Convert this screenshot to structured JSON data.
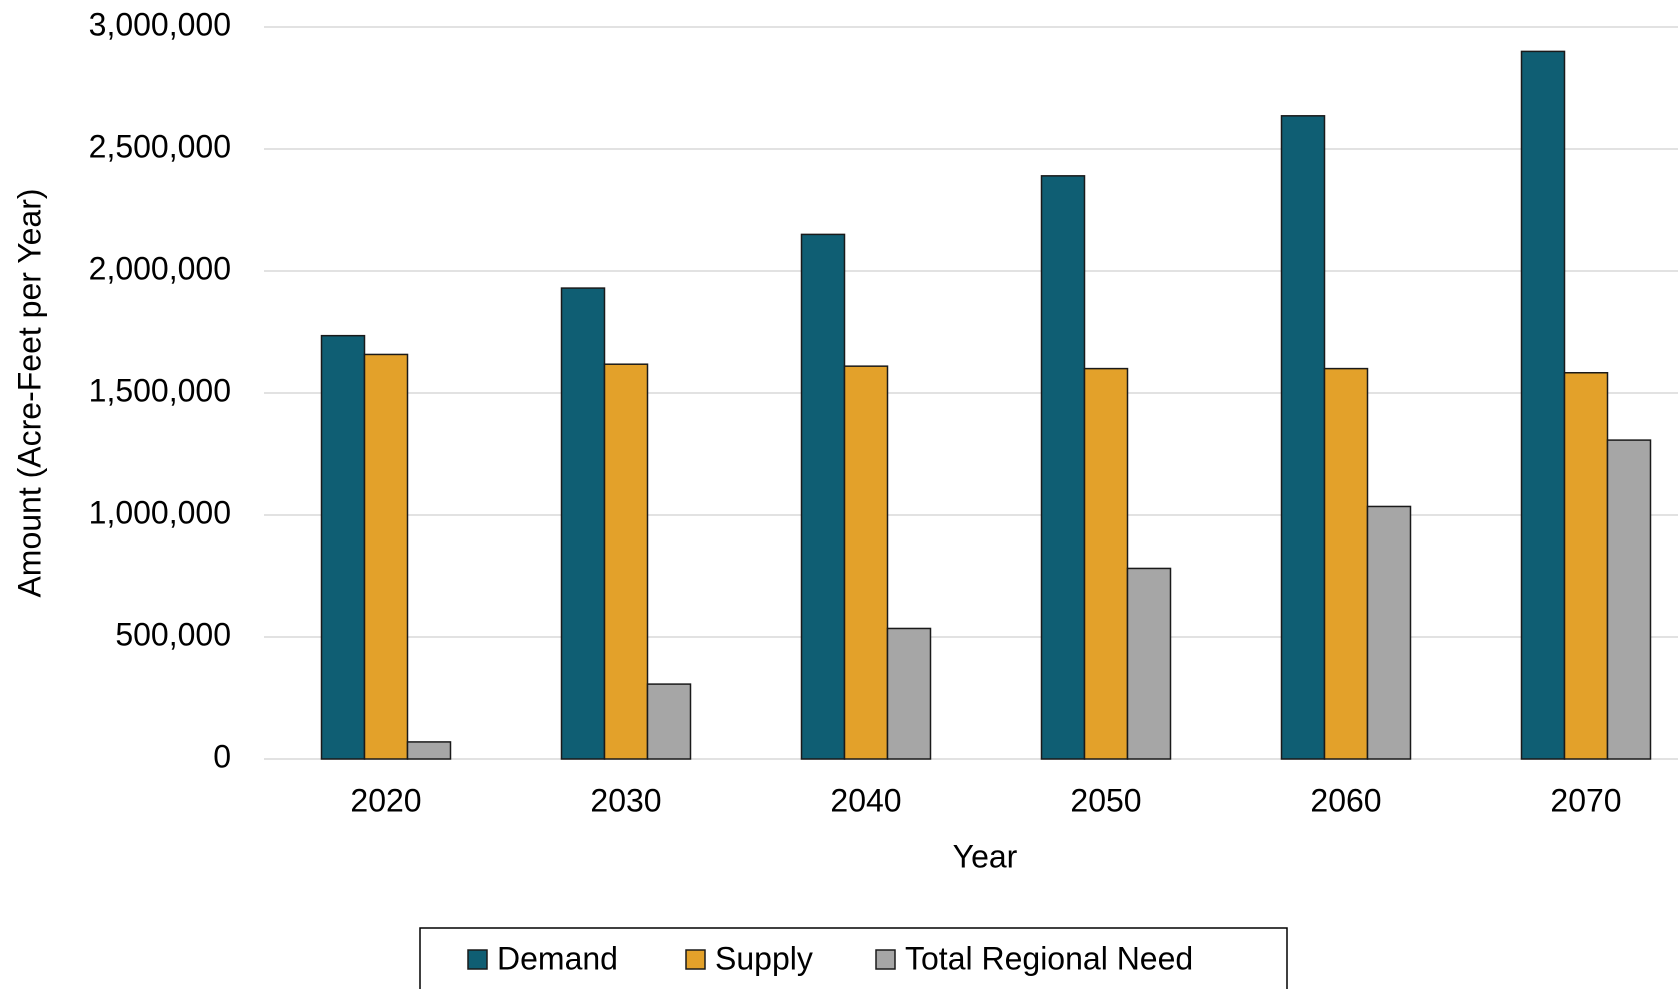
{
  "chart_data": {
    "type": "bar",
    "x_label": "Year",
    "y_label": "Amount (Acre-Feet per Year)",
    "categories": [
      "2020",
      "2030",
      "2040",
      "2050",
      "2060",
      "2070"
    ],
    "series": [
      {
        "name": "Demand",
        "color": "#0f5e73",
        "values": [
          1735000,
          1930000,
          2150000,
          2390000,
          2636000,
          2900000
        ]
      },
      {
        "name": "Supply",
        "color": "#e3a12a",
        "values": [
          1658000,
          1618000,
          1610000,
          1600000,
          1600000,
          1583000
        ]
      },
      {
        "name": "Total Regional Need",
        "color": "#a6a6a6",
        "values": [
          70000,
          307000,
          535000,
          781000,
          1035000,
          1307000
        ]
      }
    ],
    "ylim": [
      0,
      3000000
    ],
    "yticks": [
      0,
      {
        "value": 500000,
        "label": "500,000"
      },
      {
        "value": 1000000,
        "label": "1,000,000"
      },
      {
        "value": 1500000,
        "label": "1,500,000"
      },
      {
        "value": 2000000,
        "label": "2,000,000"
      },
      {
        "value": 2500000,
        "label": "2,500,000"
      },
      {
        "value": 3000000,
        "label": "3,000,000"
      }
    ],
    "grid": true,
    "legend": "bottom"
  }
}
